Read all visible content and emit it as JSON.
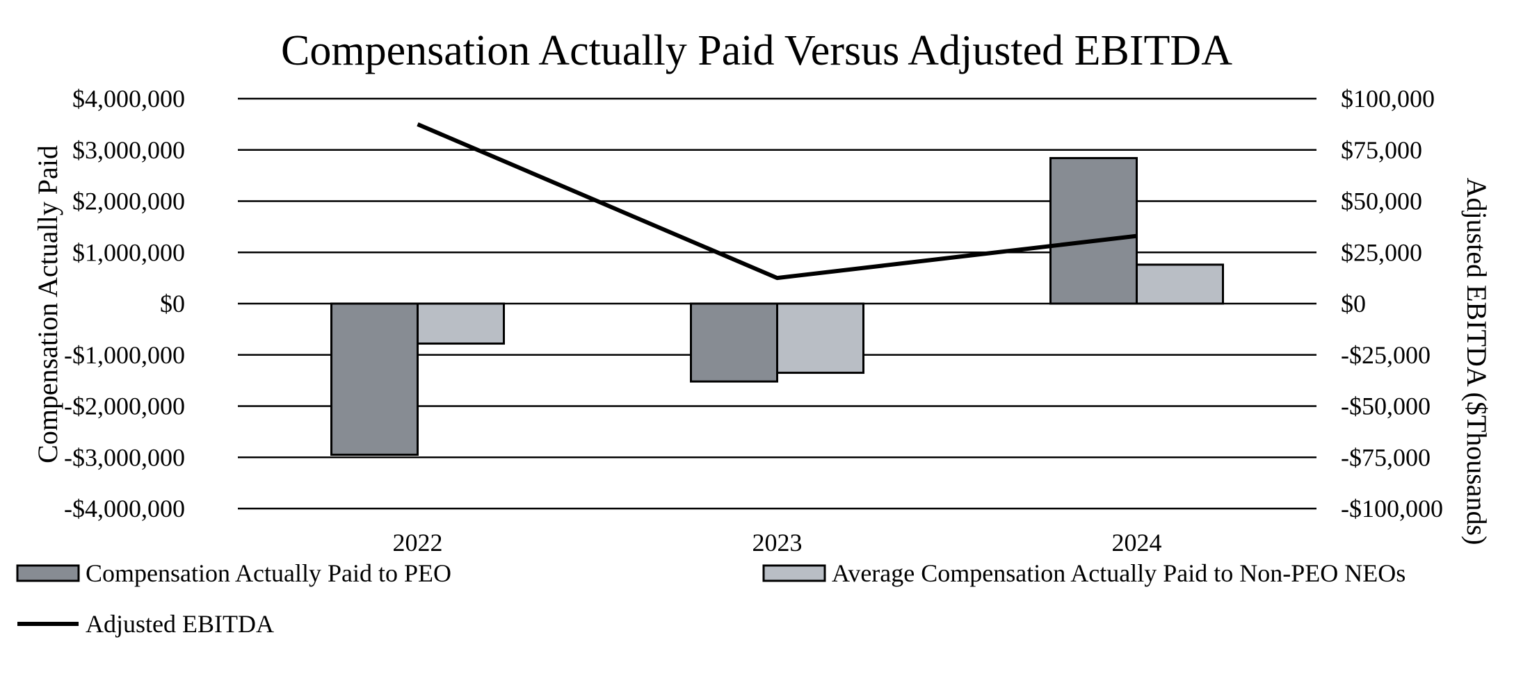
{
  "chart_data": {
    "type": "bar",
    "title": "Compensation Actually Paid Versus Adjusted EBITDA",
    "categories": [
      "2022",
      "2023",
      "2024"
    ],
    "ylabel": "Compensation Actually Paid",
    "y2label": "Adjusted EBITDA ($Thousands)",
    "ylim": [
      -4000000,
      4000000
    ],
    "y2lim": [
      -100000,
      100000
    ],
    "y_ticks": [
      "$4,000,000",
      "$3,000,000",
      "$2,000,000",
      "$1,000,000",
      "$0",
      "-$1,000,000",
      "-$2,000,000",
      "-$3,000,000",
      "-$4,000,000"
    ],
    "y2_ticks": [
      "$100,000",
      "$75,000",
      "$50,000",
      "$25,000",
      "$0",
      "-$25,000",
      "-$50,000",
      "-$75,000",
      "-$100,000"
    ],
    "grid": true,
    "legend_position": "bottom",
    "series": [
      {
        "name": "Compensation Actually Paid to PEO",
        "type": "bar",
        "axis": "left",
        "color": "#878c93",
        "values": [
          -2950000,
          -1520000,
          2840000
        ]
      },
      {
        "name": "Average Compensation Actually Paid to Non-PEO NEOs",
        "type": "bar",
        "axis": "left",
        "color": "#b9bec5",
        "values": [
          -780000,
          -1350000,
          760000
        ]
      },
      {
        "name": "Adjusted EBITDA",
        "type": "line",
        "axis": "right",
        "color": "#000000",
        "values": [
          87500,
          12500,
          33000
        ]
      }
    ]
  }
}
